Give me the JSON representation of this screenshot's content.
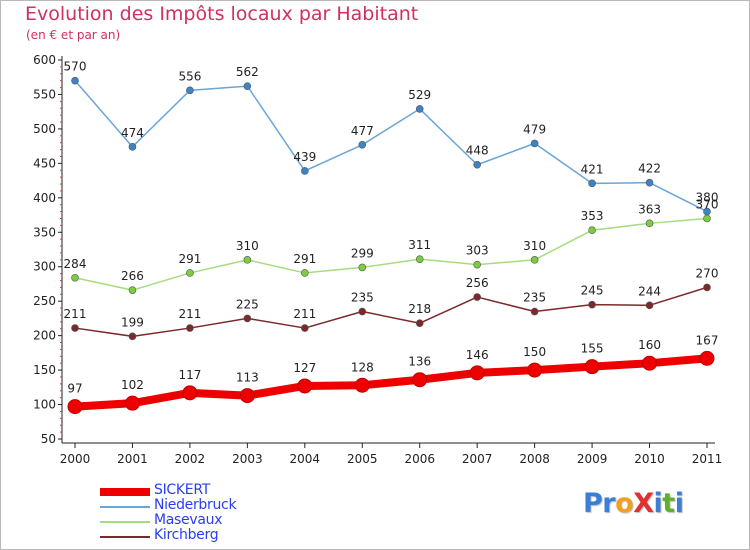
{
  "header": {
    "title": "Evolution des Impôts locaux par Habitant",
    "subtitle": "(en € et par an)"
  },
  "logo": {
    "text": "Proxiti",
    "letters": [
      {
        "ch": "P",
        "color": "#3a7fd5"
      },
      {
        "ch": "r",
        "color": "#3a7fd5"
      },
      {
        "ch": "o",
        "color": "#f0a020"
      },
      {
        "ch": "X",
        "color": "#e03030"
      },
      {
        "ch": "i",
        "color": "#3a7fd5"
      },
      {
        "ch": "t",
        "color": "#60b030"
      },
      {
        "ch": "i",
        "color": "#3a7fd5"
      }
    ]
  },
  "chart_data": {
    "type": "line",
    "title": "Evolution des Impôts locaux par Habitant",
    "subtitle": "(en € et par an)",
    "xlabel": "",
    "ylabel": "",
    "x": [
      "2000",
      "2001",
      "2002",
      "2003",
      "2004",
      "2005",
      "2006",
      "2007",
      "2008",
      "2009",
      "2010",
      "2011"
    ],
    "ylim": [
      50,
      600
    ],
    "yticks": [
      50,
      100,
      150,
      200,
      250,
      300,
      350,
      400,
      450,
      500,
      550,
      600
    ],
    "grid": false,
    "legend_position": "bottom-left",
    "series": [
      {
        "name": "SICKERT",
        "color": "#ee0000",
        "marker_fill": "#ee0000",
        "emphasis": "bold",
        "values": [
          97,
          102,
          117,
          113,
          127,
          128,
          136,
          146,
          150,
          155,
          160,
          167
        ],
        "labels": [
          "97",
          "102",
          "117",
          "113",
          "127",
          "128",
          "136",
          "146",
          "150",
          "155",
          "160",
          "167"
        ]
      },
      {
        "name": "Niederbruck",
        "color": "#6aa5d8",
        "marker_fill": "#3d84c6",
        "emphasis": "normal",
        "values": [
          570,
          474,
          556,
          562,
          439,
          477,
          529,
          448,
          479,
          421,
          422,
          380
        ],
        "labels": [
          "570",
          "474",
          "556",
          "562",
          "439",
          "477",
          "529",
          "448",
          "479",
          "421",
          "422",
          "380"
        ]
      },
      {
        "name": "Masevaux",
        "color": "#a6dc80",
        "marker_fill": "#7ccc40",
        "emphasis": "normal",
        "values": [
          284,
          266,
          291,
          310,
          291,
          299,
          311,
          303,
          310,
          353,
          363,
          370
        ],
        "labels": [
          "284",
          "266",
          "291",
          "310",
          "291",
          "299",
          "311",
          "303",
          "310",
          "353",
          "363",
          "370"
        ]
      },
      {
        "name": "Kirchberg",
        "color": "#7a2a2a",
        "marker_fill": "#7a2a2a",
        "emphasis": "normal",
        "values": [
          211,
          199,
          211,
          225,
          211,
          235,
          218,
          256,
          235,
          245,
          244,
          270
        ],
        "labels": [
          "211",
          "199",
          "211",
          "225",
          "211",
          "235",
          "218",
          "256",
          "235",
          "245",
          "244",
          "270"
        ]
      }
    ]
  }
}
